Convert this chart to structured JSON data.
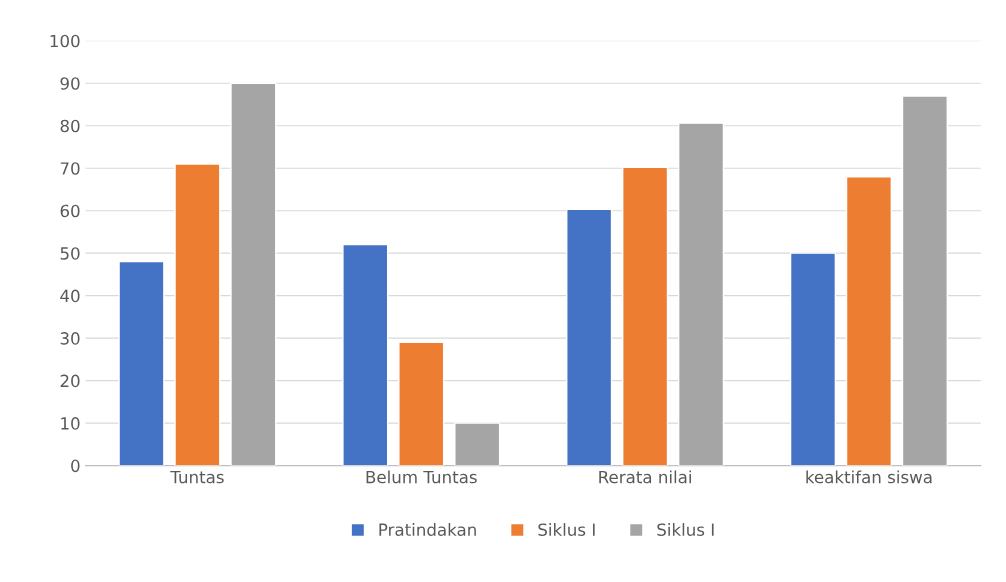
{
  "chart_data": {
    "type": "bar",
    "categories": [
      "Tuntas",
      "Belum Tuntas",
      "Rerata nilai",
      "keaktifan siswa"
    ],
    "series": [
      {
        "name": "Pratindakan",
        "color": "#4472c4",
        "values": [
          48,
          52,
          60.3,
          50
        ]
      },
      {
        "name": "Siklus I",
        "color": "#ed7d31",
        "values": [
          71,
          29,
          70.2,
          68
        ]
      },
      {
        "name": "Siklus I",
        "color": "#a5a5a5",
        "values": [
          90,
          10,
          80.6,
          87
        ]
      }
    ],
    "ylim": [
      0,
      100
    ],
    "yticks": [
      0,
      10,
      20,
      30,
      40,
      50,
      60,
      70,
      80,
      90,
      100
    ],
    "grid": "y",
    "legend": "bottom"
  }
}
